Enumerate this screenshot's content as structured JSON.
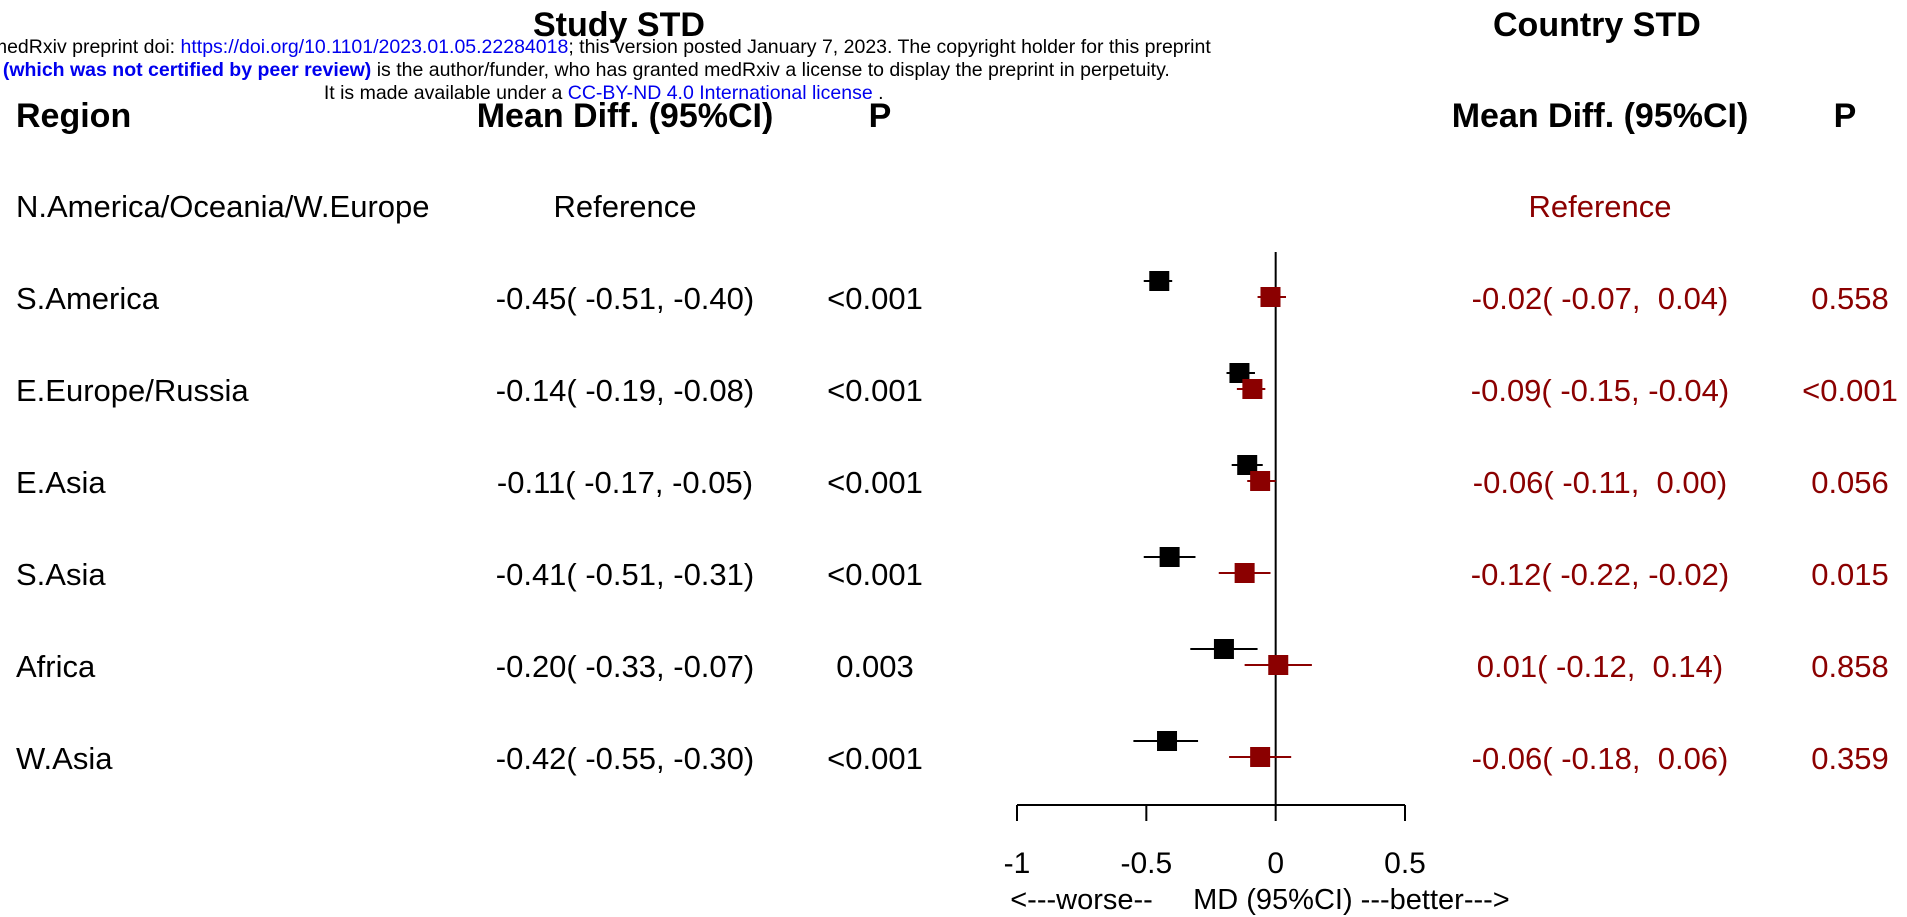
{
  "banner": {
    "line1_prefix": "medRxiv preprint doi: ",
    "line1_link": "https://doi.org/10.1101/2023.01.05.22284018",
    "line1_suffix": "; this version posted January 7, 2023. The copyright holder for this preprint",
    "line2_bold": "(which was not certified by peer review)",
    "line2_rest": " is the author/funder, who has granted medRxiv a license to display the preprint in perpetuity.",
    "line3_prefix": "It is made available under a ",
    "line3_link": "CC-BY-ND 4.0 International license",
    "line3_suffix": " ."
  },
  "panel_titles": {
    "left": "Study STD",
    "right": "Country STD"
  },
  "headers": {
    "region": "Region",
    "mean_diff_left": "Mean Diff. (95%CI)",
    "p_left": "P",
    "mean_diff_right": "Mean Diff. (95%CI)",
    "p_right": "P"
  },
  "colors": {
    "study": "#000000",
    "country": "#8b0000"
  },
  "rows": [
    {
      "region": "N.America/Oceania/W.Europe",
      "study_ci": "Reference",
      "study_p": "",
      "country_ci": "Reference",
      "country_p": ""
    },
    {
      "region": "S.America",
      "study_ci": "-0.45( -0.51, -0.40)",
      "study_p": "<0.001",
      "country_ci": "-0.02( -0.07,  0.04)",
      "country_p": "0.558"
    },
    {
      "region": "E.Europe/Russia",
      "study_ci": "-0.14( -0.19, -0.08)",
      "study_p": "<0.001",
      "country_ci": "-0.09( -0.15, -0.04)",
      "country_p": "<0.001"
    },
    {
      "region": "E.Asia",
      "study_ci": "-0.11( -0.17, -0.05)",
      "study_p": "<0.001",
      "country_ci": "-0.06( -0.11,  0.00)",
      "country_p": "0.056"
    },
    {
      "region": "S.Asia",
      "study_ci": "-0.41( -0.51, -0.31)",
      "study_p": "<0.001",
      "country_ci": "-0.12( -0.22, -0.02)",
      "country_p": "0.015"
    },
    {
      "region": "Africa",
      "study_ci": "-0.20( -0.33, -0.07)",
      "study_p": "0.003",
      "country_ci": "0.01( -0.12,  0.14)",
      "country_p": "0.858"
    },
    {
      "region": "W.Asia",
      "study_ci": "-0.42( -0.55, -0.30)",
      "study_p": "<0.001",
      "country_ci": "-0.06( -0.18,  0.06)",
      "country_p": "0.359"
    }
  ],
  "chart_data": {
    "type": "scatter",
    "subtype": "forest",
    "categories": [
      "S.America",
      "E.Europe/Russia",
      "E.Asia",
      "S.Asia",
      "Africa",
      "W.Asia"
    ],
    "series": [
      {
        "name": "Study STD",
        "estimate": [
          -0.45,
          -0.14,
          -0.11,
          -0.41,
          -0.2,
          -0.42
        ],
        "lower": [
          -0.51,
          -0.19,
          -0.17,
          -0.51,
          -0.33,
          -0.55
        ],
        "upper": [
          -0.4,
          -0.08,
          -0.05,
          -0.31,
          -0.07,
          -0.3
        ]
      },
      {
        "name": "Country STD",
        "estimate": [
          -0.02,
          -0.09,
          -0.06,
          -0.12,
          0.01,
          -0.06
        ],
        "lower": [
          -0.07,
          -0.15,
          -0.11,
          -0.22,
          -0.12,
          -0.18
        ],
        "upper": [
          0.04,
          -0.04,
          0.0,
          -0.02,
          0.14,
          0.06
        ]
      }
    ],
    "xlim": [
      -1,
      0.5
    ],
    "xticks": [
      "-1",
      "-0.5",
      "0",
      "0.5"
    ],
    "xlabel": "<---worse--     MD (95%CI) ---better--->",
    "reference_line": 0
  }
}
